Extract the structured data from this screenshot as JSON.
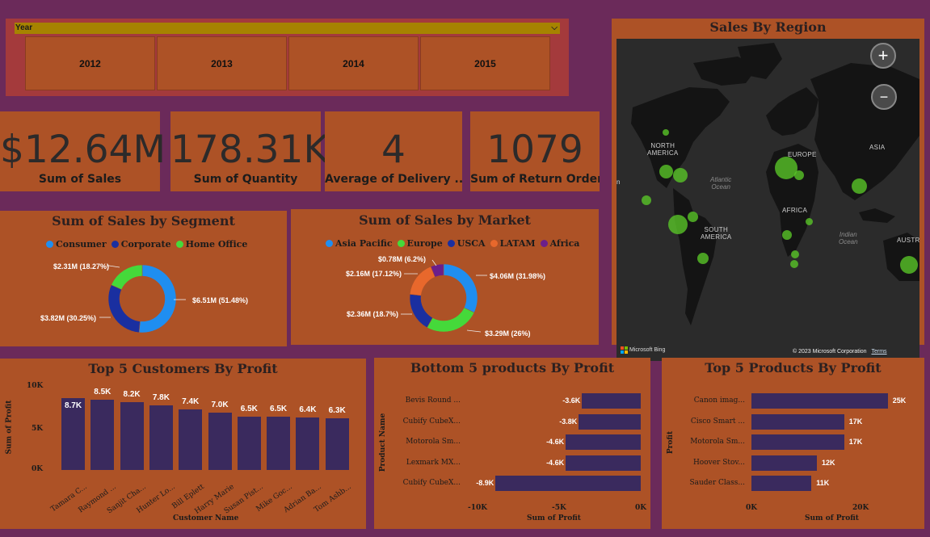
{
  "slicer": {
    "title": "Year",
    "years": [
      "2012",
      "2013",
      "2014",
      "2015"
    ]
  },
  "kpis": [
    {
      "value": "$12.64M",
      "label": "Sum of Sales"
    },
    {
      "value": "178.31K",
      "label": "Sum of Quantity"
    },
    {
      "value": "4",
      "label": "Average of Delivery ..."
    },
    {
      "value": "1079",
      "label": "Sum of Return Orders"
    }
  ],
  "segment": {
    "title": "Sum of Sales by Segment",
    "legend": [
      {
        "name": "Consumer",
        "color": "#1f8ef0"
      },
      {
        "name": "Corporate",
        "color": "#1a2fa0"
      },
      {
        "name": "Home Office",
        "color": "#45d93a"
      }
    ],
    "labels": [
      "$6.51M (51.48%)",
      "$3.82M (30.25%)",
      "$2.31M (18.27%)"
    ]
  },
  "market": {
    "title": "Sum of Sales by Market",
    "legend": [
      {
        "name": "Asia Pacific",
        "color": "#1f8ef0"
      },
      {
        "name": "Europe",
        "color": "#45d93a"
      },
      {
        "name": "USCA",
        "color": "#1a2fa0"
      },
      {
        "name": "LATAM",
        "color": "#e8682c"
      },
      {
        "name": "Africa",
        "color": "#6b1f8a"
      }
    ],
    "labels": [
      "$4.06M (31.98%)",
      "$3.29M (26%)",
      "$2.36M (18.7%)",
      "$2.16M (17.12%)",
      "$0.78M (6.2%)"
    ]
  },
  "map": {
    "title": "Sales By Region",
    "continents": [
      "NORTH\nAMERICA",
      "EUROPE",
      "ASIA",
      "AFRICA",
      "SOUTH\nAMERICA",
      "AUSTRA"
    ],
    "oceans": [
      "Atlantic\nOcean",
      "Indian\nOcean"
    ],
    "attribution": "© 2023 Microsoft Corporation",
    "terms": "Terms",
    "bing": "Microsoft Bing",
    "left_edge_label": "n"
  },
  "customers": {
    "title": "Top 5 Customers By Profit",
    "xlabel": "Customer Name",
    "ylabel": "Sum of Profit",
    "yticks": [
      "10K",
      "5K",
      "0K"
    ]
  },
  "bottom_products": {
    "title": "Bottom 5 products By Profit",
    "xlabel": "Sum of Profit",
    "ylabel": "Product Name",
    "xticks": [
      "-10K",
      "-5K",
      "0K"
    ]
  },
  "top_products": {
    "title": "Top 5 Products By Profit",
    "xlabel": "Sum of Profit",
    "ylabel": "Profit",
    "xticks": [
      "0K",
      "20K"
    ]
  },
  "chart_data": [
    {
      "type": "pie",
      "title": "Sum of Sales by Segment",
      "categories": [
        "Consumer",
        "Corporate",
        "Home Office"
      ],
      "values": [
        6.51,
        3.82,
        2.31
      ],
      "percent": [
        51.48,
        30.25,
        18.27
      ],
      "unit": "$M",
      "colors": [
        "#1f8ef0",
        "#1a2fa0",
        "#45d93a"
      ],
      "legend": "top"
    },
    {
      "type": "pie",
      "title": "Sum of Sales by Market",
      "categories": [
        "Asia Pacific",
        "Europe",
        "USCA",
        "LATAM",
        "Africa"
      ],
      "values": [
        4.06,
        3.29,
        2.36,
        2.16,
        0.78
      ],
      "percent": [
        31.98,
        26,
        18.7,
        17.12,
        6.2
      ],
      "unit": "$M",
      "colors": [
        "#1f8ef0",
        "#45d93a",
        "#1a2fa0",
        "#e8682c",
        "#6b1f8a"
      ],
      "legend": "top"
    },
    {
      "type": "bar",
      "title": "Top 5 Customers By Profit",
      "categories": [
        "Tamara C...",
        "Raymond ...",
        "Sanjit Cha...",
        "Hunter Lo...",
        "Bill Eplett",
        "Harry Marie",
        "Susan Pist...",
        "Mike Goc...",
        "Adrian Ba...",
        "Tom Ashb..."
      ],
      "values": [
        8.7,
        8.5,
        8.2,
        7.8,
        7.4,
        7.0,
        6.5,
        6.5,
        6.4,
        6.3
      ],
      "labels": [
        "8.7K",
        "8.5K",
        "8.2K",
        "7.8K",
        "7.4K",
        "7.0K",
        "6.5K",
        "6.5K",
        "6.4K",
        "6.3K"
      ],
      "xlabel": "Customer Name",
      "ylabel": "Sum of Profit",
      "ylim": [
        0,
        10
      ]
    },
    {
      "type": "bar",
      "orientation": "horizontal",
      "title": "Bottom 5 products By Profit",
      "categories": [
        "Bevis Round ...",
        "Cubify CubeX...",
        "Motorola Sm...",
        "Lexmark MX...",
        "Cubify CubeX..."
      ],
      "values": [
        -3.6,
        -3.8,
        -4.6,
        -4.6,
        -8.9
      ],
      "labels": [
        "-3.6K",
        "-3.8K",
        "-4.6K",
        "-4.6K",
        "-8.9K"
      ],
      "xlabel": "Sum of Profit",
      "ylabel": "Product Name",
      "xlim": [
        -10,
        0
      ]
    },
    {
      "type": "bar",
      "orientation": "horizontal",
      "title": "Top 5 Products By Profit",
      "categories": [
        "Canon imag...",
        "Cisco Smart ...",
        "Motorola Sm...",
        "Hoover Stov...",
        "Sauder Class..."
      ],
      "values": [
        25,
        17,
        17,
        12,
        11
      ],
      "labels": [
        "25K",
        "17K",
        "17K",
        "12K",
        "11K"
      ],
      "xlabel": "Sum of Profit",
      "ylabel": "Profit",
      "xlim": [
        0,
        26
      ]
    }
  ]
}
